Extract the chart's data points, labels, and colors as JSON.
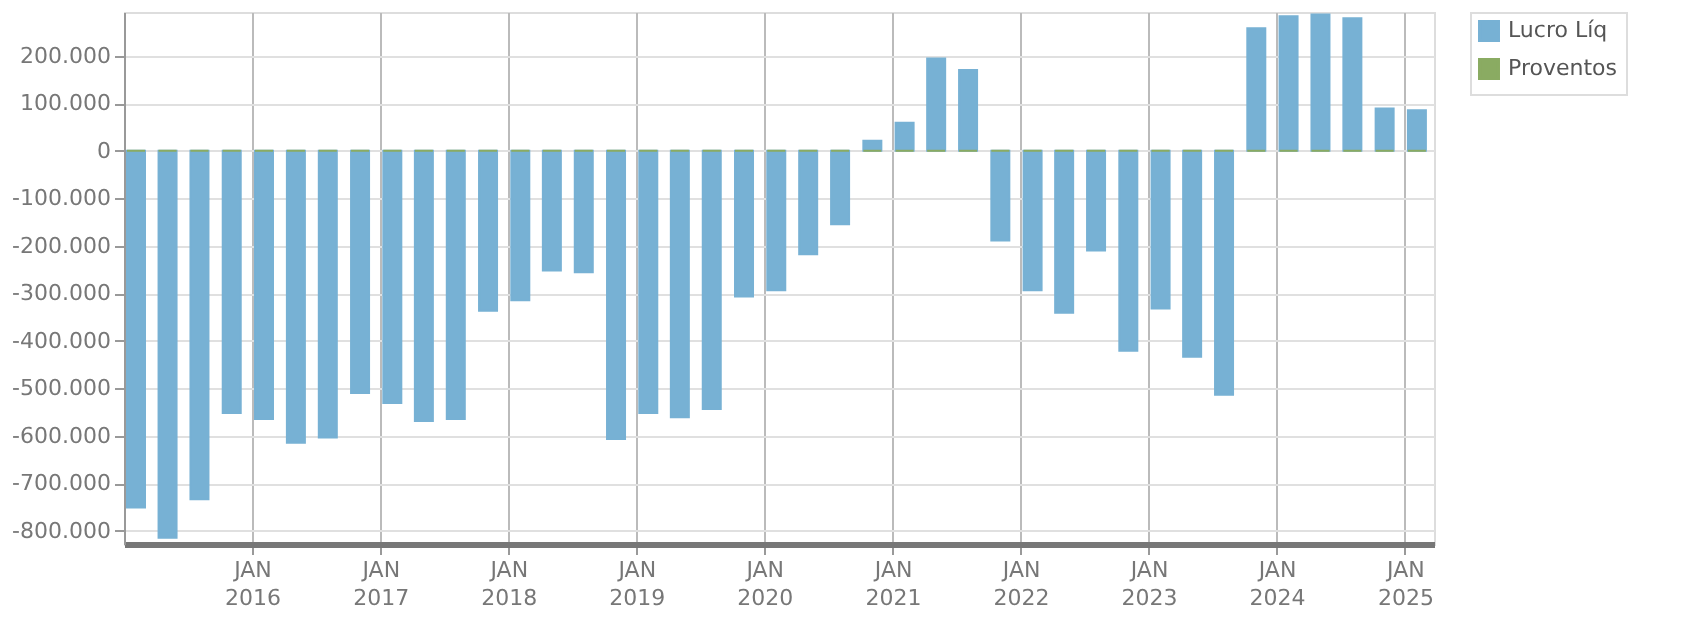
{
  "chart_data": {
    "type": "bar",
    "x": [
      "2015-01",
      "2015-04",
      "2015-07",
      "2015-10",
      "2016-01",
      "2016-04",
      "2016-07",
      "2016-10",
      "2017-01",
      "2017-04",
      "2017-07",
      "2017-10",
      "2018-01",
      "2018-04",
      "2018-07",
      "2018-10",
      "2019-01",
      "2019-04",
      "2019-07",
      "2019-10",
      "2020-01",
      "2020-04",
      "2020-07",
      "2020-10",
      "2021-01",
      "2021-04",
      "2021-07",
      "2021-10",
      "2022-01",
      "2022-04",
      "2022-07",
      "2022-10",
      "2023-01",
      "2023-04",
      "2023-07",
      "2023-10",
      "2024-01",
      "2024-04",
      "2024-07",
      "2024-10",
      "2025-01"
    ],
    "series": [
      {
        "name": "Lucro Líq",
        "color": "#77b1d4",
        "values": [
          -751000,
          -815000,
          -734000,
          -552000,
          -565000,
          -615000,
          -604000,
          -510000,
          -531000,
          -569000,
          -565000,
          -337000,
          -315000,
          -252000,
          -256000,
          -607000,
          -552000,
          -561000,
          -544000,
          -307000,
          -294000,
          -218000,
          -155000,
          21000,
          59000,
          194000,
          170000,
          -189000,
          -294000,
          -341000,
          -210000,
          -421000,
          -332000,
          -434000,
          -514000,
          258000,
          283000,
          287000,
          279000,
          89000,
          85000
        ]
      },
      {
        "name": "Proventos",
        "color": "#8aab62",
        "values": [
          0,
          0,
          0,
          0,
          0,
          0,
          0,
          0,
          0,
          0,
          0,
          0,
          0,
          0,
          0,
          0,
          0,
          0,
          0,
          0,
          0,
          0,
          0,
          0,
          0,
          0,
          0,
          0,
          0,
          0,
          0,
          0,
          0,
          0,
          0,
          0,
          0,
          0,
          0,
          0,
          0
        ]
      }
    ],
    "xlim": [
      "2015-01-01",
      "2025-03-25"
    ],
    "xticks": [
      {
        "value": "2016-01-01",
        "label": "JAN 2016"
      },
      {
        "value": "2017-01-01",
        "label": "JAN 2017"
      },
      {
        "value": "2018-01-01",
        "label": "JAN 2018"
      },
      {
        "value": "2019-01-01",
        "label": "JAN 2019"
      },
      {
        "value": "2020-01-01",
        "label": "JAN 2020"
      },
      {
        "value": "2021-01-01",
        "label": "JAN 2021"
      },
      {
        "value": "2022-01-01",
        "label": "JAN 2022"
      },
      {
        "value": "2023-01-01",
        "label": "JAN 2023"
      },
      {
        "value": "2024-01-01",
        "label": "JAN 2024"
      },
      {
        "value": "2025-01-01",
        "label": "JAN 2025"
      }
    ],
    "ylim": [
      -828000,
      292000
    ],
    "yticks": [
      {
        "value": -800000,
        "label": "-800.000"
      },
      {
        "value": -700000,
        "label": "-700.000"
      },
      {
        "value": -600000,
        "label": "-600.000"
      },
      {
        "value": -500000,
        "label": "-500.000"
      },
      {
        "value": -400000,
        "label": "-400.000"
      },
      {
        "value": -300000,
        "label": "-300.000"
      },
      {
        "value": -200000,
        "label": "-200.000"
      },
      {
        "value": -100000,
        "label": "-100.000"
      },
      {
        "value": 0,
        "label": "0"
      },
      {
        "value": 100000,
        "label": "100.000"
      },
      {
        "value": 200000,
        "label": "200.000"
      }
    ],
    "grid": true,
    "legend": "top right"
  }
}
